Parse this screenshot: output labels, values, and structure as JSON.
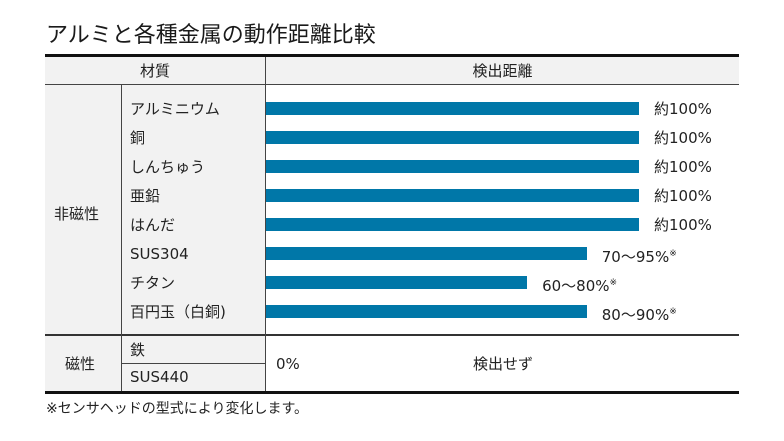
{
  "title": "アルミと各種金属の動作距離比較",
  "colors": {
    "bar": "#0077a8",
    "header_bg": "#f2f2f2"
  },
  "table": {
    "header_material": "材質",
    "header_distance": "検出距離",
    "group_nonmagnetic": "非磁性",
    "group_magnetic": "磁性",
    "magnetic_value": "0%",
    "magnetic_result": "検出せず",
    "magnetic_items": [
      "鉄",
      "SUS440"
    ]
  },
  "footnote": "※センサヘッドの型式により変化します。",
  "chart_data": {
    "type": "bar",
    "orientation": "horizontal",
    "title": "アルミと各種金属の動作距離比較",
    "xlabel": "検出距離",
    "ylabel": "材質",
    "xlim": [
      0,
      100
    ],
    "grid": false,
    "categories": [
      "アルミニウム",
      "銅",
      "しんちゅう",
      "亜鉛",
      "はんだ",
      "SUS304",
      "チタン",
      "百円玉（白銅)"
    ],
    "values": [
      100,
      100,
      100,
      100,
      100,
      86,
      70,
      86
    ],
    "labels": [
      "約100%",
      "約100%",
      "約100%",
      "約100%",
      "約100%",
      "70〜95%",
      "60〜80%",
      "80〜90%"
    ],
    "label_marks": [
      "",
      "",
      "",
      "",
      "",
      "※",
      "※",
      "※"
    ]
  }
}
